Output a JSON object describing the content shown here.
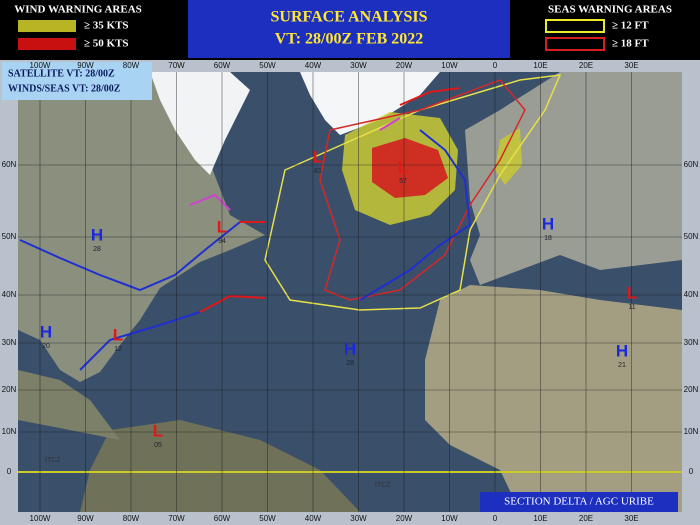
{
  "header": {
    "wind_title": "WIND WARNING AREAS",
    "wind_35": "≥ 35 KTS",
    "wind_50": "≥ 50 KTS",
    "title": "SURFACE ANALYSIS",
    "valid_time": "VT: 28/00Z FEB 2022",
    "seas_title": "SEAS WARNING AREAS",
    "seas_12": "≥ 12 FT",
    "seas_18": "≥ 18 FT"
  },
  "info_box": {
    "satellite": "SATELLITE VT: 28/00Z",
    "winds_seas": "WINDS/SEAS VT: 28/00Z"
  },
  "footer": {
    "credit": "SECTION DELTA / AGC URIBE"
  },
  "longitudes": [
    "100W",
    "90W",
    "80W",
    "70W",
    "60W",
    "50W",
    "40W",
    "30W",
    "20W",
    "10W",
    "0",
    "10E",
    "20E",
    "30E"
  ],
  "latitudes": [
    "60N",
    "50N",
    "40N",
    "30N",
    "20N",
    "10N",
    "0"
  ],
  "pressure_centers": [
    {
      "letter": "H",
      "value": "28"
    },
    {
      "letter": "L",
      "value": "94"
    },
    {
      "letter": "L",
      "value": "81"
    },
    {
      "letter": "L",
      "value": "57"
    },
    {
      "letter": "H",
      "value": "28"
    },
    {
      "letter": "H",
      "value": "18"
    },
    {
      "letter": "L",
      "value": "12"
    },
    {
      "letter": "H",
      "value": "21"
    },
    {
      "letter": "H",
      "value": "20"
    },
    {
      "letter": "L",
      "value": "11"
    },
    {
      "letter": "L",
      "value": "05"
    }
  ],
  "labels": {
    "itcz_west": "ITCZ",
    "itcz_east": "ITCZ"
  }
}
